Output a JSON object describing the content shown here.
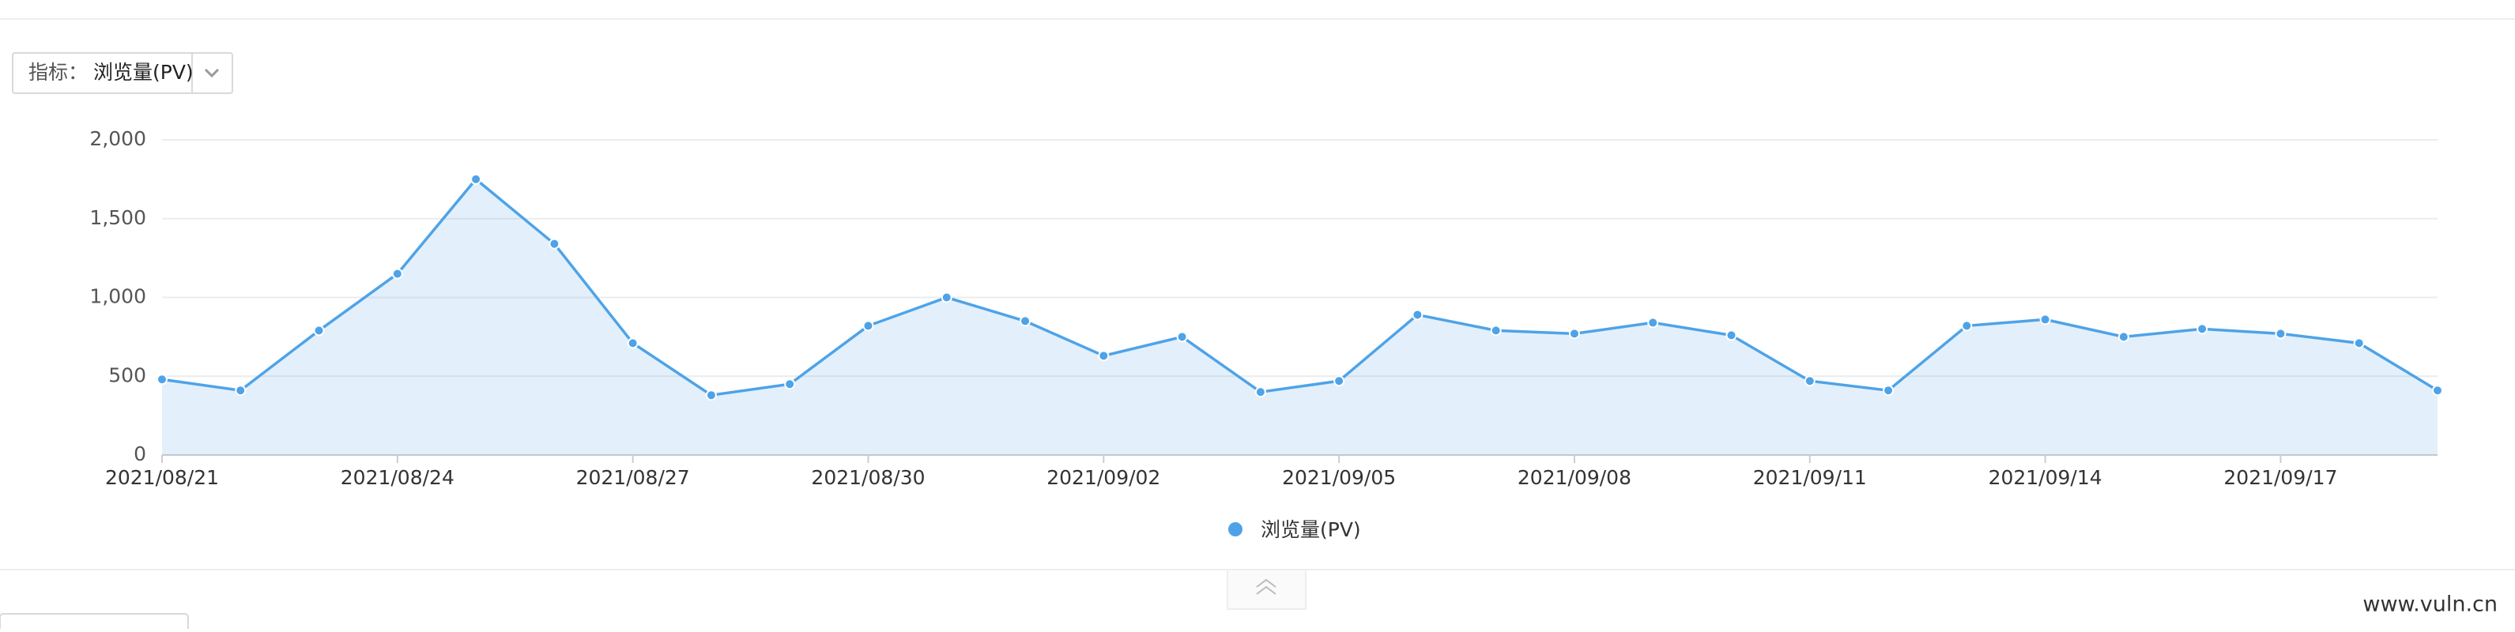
{
  "selector": {
    "label": "指标：",
    "value": "浏览量(PV)"
  },
  "chart_data": {
    "type": "line",
    "categories": [
      "2021/08/21",
      null,
      null,
      "2021/08/24",
      null,
      null,
      "2021/08/27",
      null,
      null,
      "2021/08/30",
      null,
      null,
      "2021/09/02",
      null,
      null,
      "2021/09/05",
      null,
      null,
      "2021/09/08",
      null,
      null,
      "2021/09/11",
      null,
      null,
      "2021/09/14",
      null,
      null,
      "2021/09/17",
      null,
      null
    ],
    "series": [
      {
        "name": "浏览量(PV)",
        "color": "#4ea3e8",
        "values": [
          480,
          410,
          790,
          1150,
          1750,
          1340,
          710,
          380,
          450,
          820,
          1000,
          850,
          630,
          750,
          400,
          470,
          890,
          790,
          770,
          840,
          760,
          470,
          410,
          820,
          860,
          750,
          800,
          770,
          710,
          410
        ]
      }
    ],
    "area": true,
    "ylim": [
      0,
      2000
    ],
    "yticks": [
      0,
      500,
      {
        "value": 1000,
        "label": "1,000"
      },
      {
        "value": 1500,
        "label": "1,500"
      },
      {
        "value": 2000,
        "label": "2,000"
      }
    ],
    "grid": true
  },
  "watermark": "www.vuln.cn"
}
